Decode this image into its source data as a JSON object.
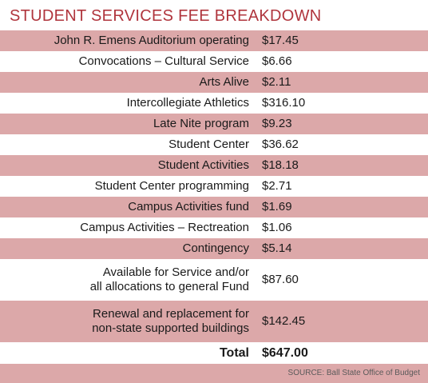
{
  "chart_data": {
    "type": "table",
    "title": "STUDENT SERVICES FEE BREAKDOWN",
    "rows": [
      {
        "label": "John R. Emens Auditorium operating",
        "amount": "$17.45",
        "value": 17.45
      },
      {
        "label": "Convocations – Cultural Service",
        "amount": "$6.66",
        "value": 6.66
      },
      {
        "label": "Arts Alive",
        "amount": "$2.11",
        "value": 2.11
      },
      {
        "label": "Intercollegiate Athletics",
        "amount": "$316.10",
        "value": 316.1
      },
      {
        "label": "Late Nite program",
        "amount": "$9.23",
        "value": 9.23
      },
      {
        "label": "Student Center",
        "amount": "$36.62",
        "value": 36.62
      },
      {
        "label": "Student Activities",
        "amount": "$18.18",
        "value": 18.18
      },
      {
        "label": "Student Center programming",
        "amount": "$2.71",
        "value": 2.71
      },
      {
        "label": "Campus Activities fund",
        "amount": "$1.69",
        "value": 1.69
      },
      {
        "label": "Campus Activities – Rectreation",
        "amount": "$1.06",
        "value": 1.06
      },
      {
        "label": "Contingency",
        "amount": "$5.14",
        "value": 5.14
      },
      {
        "label": "Available for Service and/or\nall allocations to general Fund",
        "amount": "$87.60",
        "value": 87.6
      },
      {
        "label": "Renewal and replacement for\nnon-state supported buildings",
        "amount": "$142.45",
        "value": 142.45
      }
    ],
    "total": {
      "label": "Total",
      "amount": "$647.00",
      "value": 647.0
    },
    "source": "SOURCE: Ball State Office of Budget"
  },
  "colors": {
    "title": "#b0353d",
    "row_shade": "#dca8a9",
    "row_plain": "#ffffff",
    "text": "#1a1a1a"
  }
}
